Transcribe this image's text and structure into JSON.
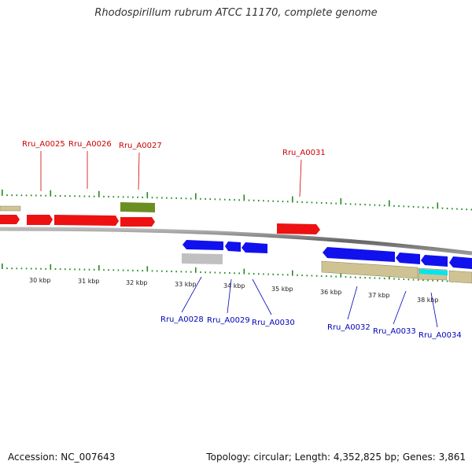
{
  "header": {
    "title": "Rhodospirillum rubrum ATCC 11170, complete genome"
  },
  "footer": {
    "accession": "Accession: NC_007643",
    "summary": "Topology: circular; Length: 4,352,825 bp; Genes: 3,861"
  },
  "colors": {
    "forward_cds": "#ee1111",
    "reverse_cds": "#1111ee",
    "olive_feature": "#6b8e23",
    "tan_feature": "#cfc394",
    "gray_feature": "#c0c0c0",
    "cyan_feature": "#00e5ee",
    "backbone": "#777777",
    "tick": "#228b22",
    "forward_label": "#cc0000",
    "reverse_label": "#0000bb"
  },
  "kbp_ticks": [
    "30 kbp",
    "31 kbp",
    "32 kbp",
    "33 kbp",
    "34 kbp",
    "35 kbp",
    "36 kbp",
    "37 kbp",
    "38 kbp"
  ],
  "gene_labels": {
    "forward": [
      "Rru_A0025",
      "Rru_A0026",
      "Rru_A0027",
      "Rru_A0031"
    ],
    "reverse": [
      "Rru_A0028",
      "Rru_A0029",
      "Rru_A0030",
      "Rru_A0032",
      "Rru_A0033",
      "Rru_A0034"
    ]
  }
}
